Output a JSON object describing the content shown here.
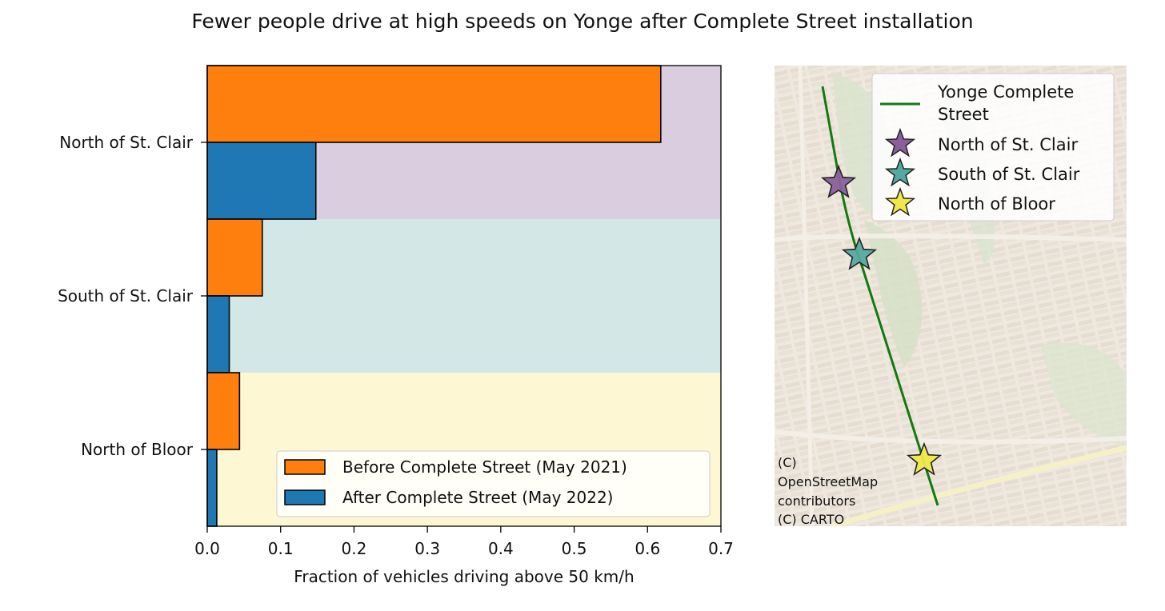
{
  "title": "Fewer people drive at high speeds on Yonge after Complete Street installation",
  "chart_data": {
    "type": "bar",
    "orientation": "horizontal",
    "categories": [
      "North of St. Clair",
      "South of St. Clair",
      "North of Bloor"
    ],
    "category_colors": [
      "#dacde0",
      "#d3e8e6",
      "#fdf8d3"
    ],
    "series": [
      {
        "name": "Before Complete Street (May 2021)",
        "color": "#ff7f0e",
        "values": [
          0.618,
          0.075,
          0.044
        ]
      },
      {
        "name": "After Complete Street (May 2022)",
        "color": "#1f77b4",
        "values": [
          0.148,
          0.03,
          0.013
        ]
      }
    ],
    "xlabel": "Fraction of vehicles driving above 50 km/h",
    "xlim": [
      0,
      0.7
    ],
    "xticks": [
      "0.0",
      "0.1",
      "0.2",
      "0.3",
      "0.4",
      "0.5",
      "0.6",
      "0.7"
    ],
    "grid": false,
    "legend_position": "lower-right"
  },
  "map": {
    "line_label": "Yonge Complete Street",
    "line_color": "#127a12",
    "markers": [
      {
        "name": "North of St. Clair",
        "color": "#8b5f9c"
      },
      {
        "name": "South of St. Clair",
        "color": "#54aaa0"
      },
      {
        "name": "North of Bloor",
        "color": "#f0e84a"
      }
    ],
    "legend_position": "upper-right",
    "attribution": [
      "(C)",
      "OpenStreetMap",
      "contributors",
      "(C) CARTO"
    ]
  }
}
